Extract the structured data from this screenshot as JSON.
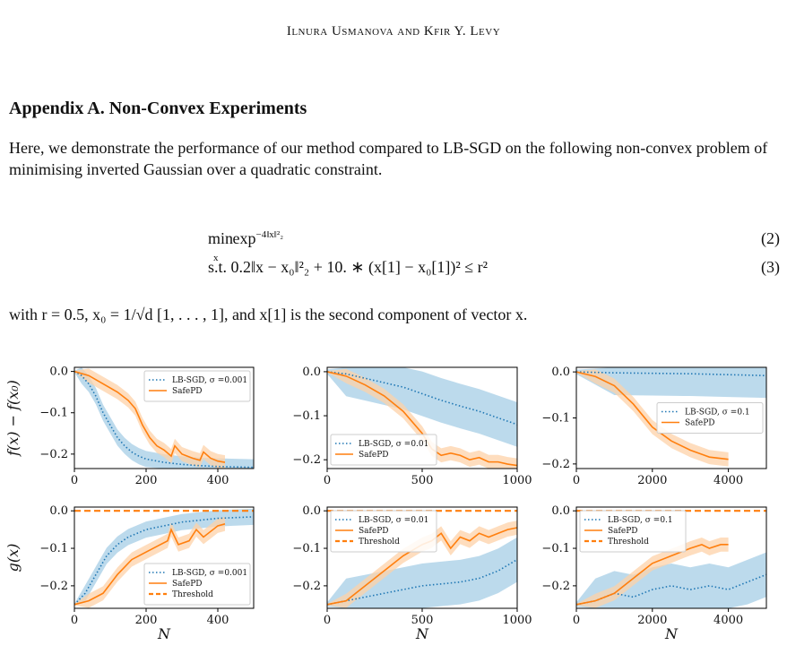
{
  "header": "Ilnura Usmanova and Kfir Y. Levy",
  "section_title": "Appendix A. Non-Convex Experiments",
  "paragraph": "Here, we demonstrate the performance of our method compared to LB-SGD on the following non-convex problem of minimising inverted Gaussian over a quadratic constraint.",
  "eq1": {
    "lhs": "min",
    "sub": "x",
    "body": "exp",
    "exp": "−4‖x‖²₂",
    "number": "(2)"
  },
  "eq2": {
    "text": "s.t.  0.2‖x − x₀‖²₂ + 10. ∗ (x[1] − x₀[1])² ≤ r²",
    "number": "(3)"
  },
  "paragraph2": "with r = 0.5, x₀ = 1/√d [1, . . . , 1], and x[1] is the second component of vector x.",
  "colors": {
    "lbsgd": "#1f77b4",
    "safepd": "#ff7f0e",
    "threshold": "#ff7f0e",
    "band_blue": "#a6cde6",
    "band_orange": "#fdd2a8"
  },
  "chart_data": [
    {
      "type": "line",
      "ylabel": "f(x) − f(x₀)",
      "xlabel": "",
      "xlim": [
        0,
        500
      ],
      "ylim": [
        -0.235,
        0.01
      ],
      "xticks": [
        0,
        200,
        400
      ],
      "xtick_labels": [
        "0",
        "200",
        "400"
      ],
      "yticks": [
        0,
        -0.1,
        -0.2
      ],
      "ytick_labels": [
        "0.0",
        "−0.1",
        "−0.2"
      ],
      "legend": "top-right",
      "legend_items": [
        "LB-SGD, σ =0.001",
        "SafePD"
      ],
      "series": [
        {
          "name": "LB-SGD, σ =0.001",
          "style": "dotted",
          "x": [
            0,
            20,
            40,
            60,
            80,
            100,
            120,
            140,
            160,
            180,
            200,
            250,
            300,
            350,
            400,
            450,
            500
          ],
          "y": [
            0,
            -0.01,
            -0.03,
            -0.06,
            -0.1,
            -0.13,
            -0.16,
            -0.18,
            -0.195,
            -0.205,
            -0.212,
            -0.22,
            -0.225,
            -0.228,
            -0.23,
            -0.231,
            -0.232
          ]
        },
        {
          "name": "SafePD",
          "style": "solid",
          "x": [
            0,
            40,
            80,
            120,
            150,
            170,
            190,
            210,
            230,
            250,
            270,
            280,
            300,
            330,
            350,
            360,
            380,
            400,
            420
          ],
          "y": [
            0,
            -0.01,
            -0.03,
            -0.05,
            -0.07,
            -0.09,
            -0.13,
            -0.16,
            -0.18,
            -0.19,
            -0.205,
            -0.18,
            -0.2,
            -0.21,
            -0.215,
            -0.195,
            -0.21,
            -0.217,
            -0.22
          ]
        }
      ]
    },
    {
      "type": "line",
      "ylabel": "",
      "xlabel": "",
      "xlim": [
        0,
        1000
      ],
      "ylim": [
        -0.22,
        0.01
      ],
      "xticks": [
        0,
        500,
        1000
      ],
      "xtick_labels": [
        "0",
        "500",
        "1000"
      ],
      "yticks": [
        0,
        -0.1,
        -0.2
      ],
      "ytick_labels": [
        "0.0",
        "−0.1",
        "−0.2"
      ],
      "legend": "bottom-left",
      "legend_items": [
        "LB-SGD, σ =0.01",
        "SafePD"
      ],
      "series": [
        {
          "name": "LB-SGD, σ =0.01",
          "style": "dotted",
          "x": [
            0,
            100,
            200,
            300,
            400,
            500,
            600,
            700,
            800,
            900,
            1000
          ],
          "y": [
            0,
            -0.005,
            -0.015,
            -0.025,
            -0.035,
            -0.05,
            -0.065,
            -0.078,
            -0.09,
            -0.105,
            -0.12
          ]
        },
        {
          "name": "SafePD",
          "style": "solid",
          "x": [
            0,
            100,
            200,
            300,
            400,
            500,
            550,
            600,
            650,
            700,
            750,
            800,
            850,
            900,
            950,
            1000
          ],
          "y": [
            0,
            -0.01,
            -0.03,
            -0.055,
            -0.09,
            -0.14,
            -0.175,
            -0.19,
            -0.185,
            -0.19,
            -0.2,
            -0.195,
            -0.205,
            -0.205,
            -0.21,
            -0.213
          ]
        }
      ]
    },
    {
      "type": "line",
      "ylabel": "",
      "xlabel": "",
      "xlim": [
        0,
        5000
      ],
      "ylim": [
        -0.21,
        0.01
      ],
      "xticks": [
        0,
        2000,
        4000
      ],
      "xtick_labels": [
        "0",
        "2000",
        "4000"
      ],
      "yticks": [
        0,
        -0.1,
        -0.2
      ],
      "ytick_labels": [
        "0.0",
        "−0.1",
        "−0.2"
      ],
      "legend": "center-right",
      "legend_items": [
        "LB-SGD, σ =0.1",
        "SafePD"
      ],
      "series": [
        {
          "name": "LB-SGD, σ =0.1",
          "style": "dotted",
          "x": [
            0,
            1000,
            2000,
            3000,
            4000,
            5000
          ],
          "y": [
            0,
            -0.002,
            -0.003,
            -0.004,
            -0.006,
            -0.008
          ]
        },
        {
          "name": "SafePD",
          "style": "solid",
          "x": [
            0,
            500,
            1000,
            1500,
            2000,
            2500,
            3000,
            3500,
            4000
          ],
          "y": [
            0,
            -0.01,
            -0.03,
            -0.07,
            -0.12,
            -0.15,
            -0.17,
            -0.185,
            -0.19
          ]
        }
      ]
    },
    {
      "type": "line",
      "ylabel": "g(x)",
      "xlabel": "N",
      "xlim": [
        0,
        500
      ],
      "ylim": [
        -0.26,
        0.01
      ],
      "xticks": [
        0,
        200,
        400
      ],
      "xtick_labels": [
        "0",
        "200",
        "400"
      ],
      "yticks": [
        0,
        -0.1,
        -0.2
      ],
      "ytick_labels": [
        "0.0",
        "−0.1",
        "−0.2"
      ],
      "legend": "bottom-right",
      "legend_items": [
        "LB-SGD, σ =0.001",
        "SafePD",
        "Threshold"
      ],
      "series": [
        {
          "name": "LB-SGD, σ =0.001",
          "style": "dotted",
          "x": [
            0,
            30,
            60,
            90,
            120,
            150,
            200,
            250,
            300,
            350,
            400,
            450,
            500
          ],
          "y": [
            -0.25,
            -0.22,
            -0.17,
            -0.12,
            -0.09,
            -0.07,
            -0.05,
            -0.04,
            -0.03,
            -0.025,
            -0.02,
            -0.018,
            -0.016
          ]
        },
        {
          "name": "SafePD",
          "style": "solid",
          "x": [
            0,
            40,
            80,
            120,
            160,
            200,
            240,
            260,
            270,
            290,
            320,
            340,
            360,
            400,
            420
          ],
          "y": [
            -0.25,
            -0.24,
            -0.22,
            -0.17,
            -0.13,
            -0.11,
            -0.09,
            -0.08,
            -0.05,
            -0.09,
            -0.08,
            -0.05,
            -0.07,
            -0.04,
            -0.035
          ]
        },
        {
          "name": "Threshold",
          "style": "dashed",
          "x": [
            0,
            500
          ],
          "y": [
            0,
            0
          ]
        }
      ]
    },
    {
      "type": "line",
      "ylabel": "",
      "xlabel": "N",
      "xlim": [
        0,
        1000
      ],
      "ylim": [
        -0.26,
        0.01
      ],
      "xticks": [
        0,
        500,
        1000
      ],
      "xtick_labels": [
        "0",
        "500",
        "1000"
      ],
      "yticks": [
        0,
        -0.1,
        -0.2
      ],
      "ytick_labels": [
        "0.0",
        "−0.1",
        "−0.2"
      ],
      "legend": "top-left",
      "legend_items": [
        "LB-SGD, σ =0.01",
        "SafePD",
        "Threshold"
      ],
      "series": [
        {
          "name": "LB-SGD, σ =0.01",
          "style": "dotted",
          "x": [
            0,
            100,
            200,
            300,
            400,
            500,
            600,
            700,
            800,
            900,
            1000
          ],
          "y": [
            -0.25,
            -0.24,
            -0.23,
            -0.22,
            -0.21,
            -0.2,
            -0.195,
            -0.19,
            -0.18,
            -0.16,
            -0.13
          ]
        },
        {
          "name": "SafePD",
          "style": "solid",
          "x": [
            0,
            100,
            200,
            300,
            400,
            500,
            550,
            600,
            650,
            700,
            750,
            800,
            850,
            900,
            950,
            1000
          ],
          "y": [
            -0.25,
            -0.24,
            -0.2,
            -0.16,
            -0.12,
            -0.09,
            -0.08,
            -0.06,
            -0.1,
            -0.07,
            -0.08,
            -0.06,
            -0.07,
            -0.06,
            -0.05,
            -0.045
          ]
        },
        {
          "name": "Threshold",
          "style": "dashed",
          "x": [
            0,
            1000
          ],
          "y": [
            0,
            0
          ]
        }
      ]
    },
    {
      "type": "line",
      "ylabel": "",
      "xlabel": "N",
      "xlim": [
        0,
        5000
      ],
      "ylim": [
        -0.26,
        0.01
      ],
      "xticks": [
        0,
        2000,
        4000
      ],
      "xtick_labels": [
        "0",
        "2000",
        "4000"
      ],
      "yticks": [
        0,
        -0.1,
        -0.2
      ],
      "ytick_labels": [
        "0.0",
        "−0.1",
        "−0.2"
      ],
      "legend": "top-left",
      "legend_items": [
        "LB-SGD, σ =0.1",
        "SafePD",
        "Threshold"
      ],
      "series": [
        {
          "name": "LB-SGD, σ =0.1",
          "style": "dotted",
          "x": [
            0,
            500,
            1000,
            1500,
            2000,
            2500,
            3000,
            3500,
            4000,
            4500,
            5000
          ],
          "y": [
            -0.25,
            -0.24,
            -0.22,
            -0.23,
            -0.21,
            -0.2,
            -0.21,
            -0.2,
            -0.21,
            -0.19,
            -0.17
          ]
        },
        {
          "name": "SafePD",
          "style": "solid",
          "x": [
            0,
            500,
            1000,
            1500,
            2000,
            2500,
            3000,
            3300,
            3500,
            3800,
            4000
          ],
          "y": [
            -0.25,
            -0.24,
            -0.22,
            -0.18,
            -0.14,
            -0.12,
            -0.1,
            -0.09,
            -0.1,
            -0.09,
            -0.09
          ]
        },
        {
          "name": "Threshold",
          "style": "dashed",
          "x": [
            0,
            5000
          ],
          "y": [
            0,
            0
          ]
        }
      ]
    }
  ]
}
